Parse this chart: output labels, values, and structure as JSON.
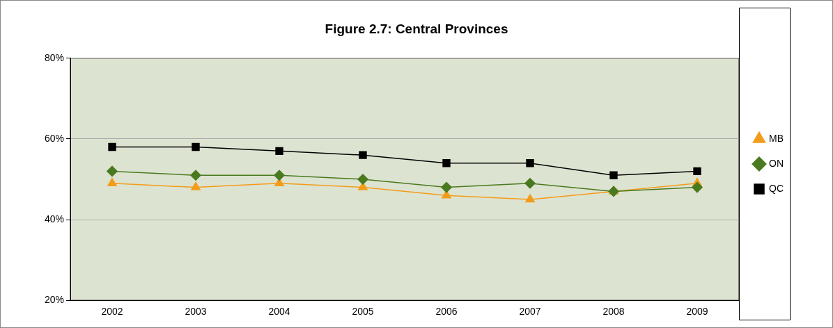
{
  "chart_data": {
    "type": "line",
    "title": "Figure 2.7: Central Provinces",
    "categories": [
      "2002",
      "2003",
      "2004",
      "2005",
      "2006",
      "2007",
      "2008",
      "2009"
    ],
    "series": [
      {
        "name": "MB",
        "color": "#f39c1a",
        "marker": "triangle",
        "values": [
          49,
          48,
          49,
          48,
          46,
          45,
          47,
          49
        ]
      },
      {
        "name": "ON",
        "color": "#4a7a1f",
        "marker": "diamond",
        "values": [
          52,
          51,
          51,
          50,
          48,
          49,
          47,
          48
        ]
      },
      {
        "name": "QC",
        "color": "#000000",
        "marker": "square",
        "values": [
          58,
          58,
          57,
          56,
          54,
          54,
          51,
          52
        ]
      }
    ],
    "ylim": [
      20,
      80
    ],
    "yticks": [
      {
        "value": 20,
        "label": "20%"
      },
      {
        "value": 40,
        "label": "40%"
      },
      {
        "value": 60,
        "label": "60%"
      },
      {
        "value": 80,
        "label": "80%"
      }
    ],
    "grid": "y",
    "legend": "right",
    "line_style": "solid"
  }
}
